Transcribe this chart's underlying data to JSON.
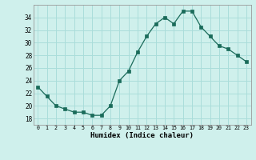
{
  "x": [
    0,
    1,
    2,
    3,
    4,
    5,
    6,
    7,
    8,
    9,
    10,
    11,
    12,
    13,
    14,
    15,
    16,
    17,
    18,
    19,
    20,
    21,
    22,
    23
  ],
  "y": [
    23.0,
    21.5,
    20.0,
    19.5,
    19.0,
    19.0,
    18.5,
    18.5,
    20.0,
    24.0,
    25.5,
    28.5,
    31.0,
    33.0,
    34.0,
    33.0,
    35.0,
    35.0,
    32.5,
    31.0,
    29.5,
    29.0,
    28.0,
    27.0
  ],
  "line_color": "#1a6b5a",
  "marker": "s",
  "marker_size": 2.5,
  "bg_color": "#cff0ec",
  "grid_color": "#aaddda",
  "xlabel": "Humidex (Indice chaleur)",
  "ylim": [
    17,
    36
  ],
  "xlim": [
    -0.5,
    23.5
  ],
  "yticks": [
    18,
    20,
    22,
    24,
    26,
    28,
    30,
    32,
    34
  ],
  "xticks": [
    0,
    1,
    2,
    3,
    4,
    5,
    6,
    7,
    8,
    9,
    10,
    11,
    12,
    13,
    14,
    15,
    16,
    17,
    18,
    19,
    20,
    21,
    22,
    23
  ]
}
